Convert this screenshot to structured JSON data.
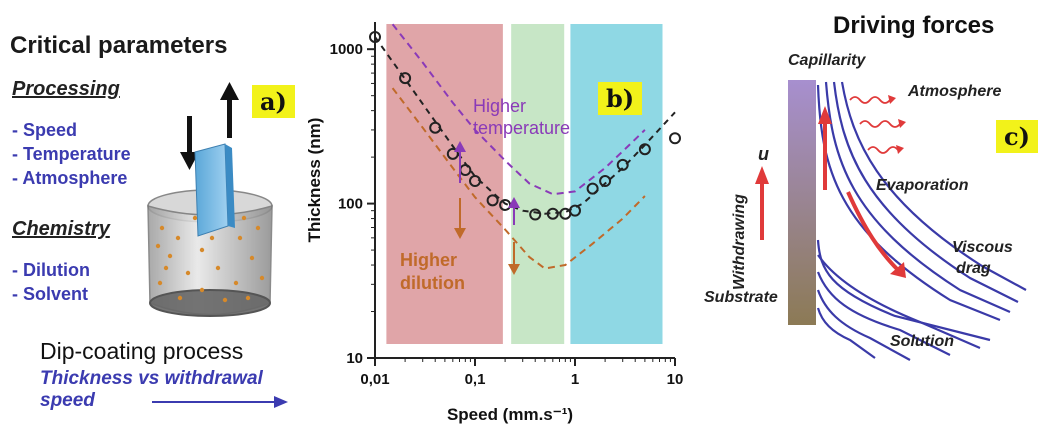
{
  "panel_a": {
    "title": "Critical parameters",
    "processing_heading": "Processing",
    "processing_items": [
      "- Speed",
      "- Temperature",
      "- Atmosphere"
    ],
    "chemistry_heading": "Chemistry",
    "chemistry_items": [
      "- Dilution",
      "- Solvent"
    ],
    "label": "a)",
    "footer_title": "Dip-coating process",
    "footer_sub_line1": "Thickness vs withdrawal",
    "footer_sub_line2": "speed"
  },
  "panel_b": {
    "label": "b)",
    "annotation_temperature_line1": "Higher",
    "annotation_temperature_line2": "temperature",
    "annotation_dilution_line1": "Higher",
    "annotation_dilution_line2": "dilution",
    "colors": {
      "red_band": "#e0a5a8",
      "green_band": "#c7e6c6",
      "blue_band": "#8fd8e4",
      "purple": "#8a3ab8",
      "orange": "#c06a2a"
    }
  },
  "panel_c": {
    "title": "Driving forces",
    "label": "c)",
    "capillarity": "Capillarity",
    "atmosphere": "Atmosphere",
    "withdrawing": "Withdrawing",
    "u": "u",
    "evaporation": "Evaporation",
    "viscous_line1": "Viscous",
    "viscous_line2": "drag",
    "substrate": "Substrate",
    "solution": "Solution"
  },
  "chart_data": {
    "type": "scatter",
    "xlabel": "Speed (mm.s⁻¹)",
    "ylabel": "Thickness (nm)",
    "x_scale": "log",
    "y_scale": "log",
    "xlim": [
      0.01,
      10
    ],
    "ylim": [
      10,
      1500
    ],
    "x_ticks": [
      0.01,
      0.1,
      1,
      10
    ],
    "x_tick_labels": [
      "0,01",
      "0,1",
      "1",
      "10"
    ],
    "y_ticks": [
      10,
      100,
      1000
    ],
    "y_tick_labels": [
      "10",
      "100",
      "1000"
    ],
    "bands": [
      {
        "from": 0.013,
        "to": 0.19,
        "color": "#e0a5a8"
      },
      {
        "from": 0.23,
        "to": 0.78,
        "color": "#c7e6c6"
      },
      {
        "from": 0.9,
        "to": 7.5,
        "color": "#8fd8e4"
      }
    ],
    "points": [
      {
        "x": 0.01,
        "y": 1200
      },
      {
        "x": 0.02,
        "y": 650
      },
      {
        "x": 0.04,
        "y": 310
      },
      {
        "x": 0.06,
        "y": 210
      },
      {
        "x": 0.08,
        "y": 165
      },
      {
        "x": 0.1,
        "y": 140
      },
      {
        "x": 0.15,
        "y": 105
      },
      {
        "x": 0.2,
        "y": 98
      },
      {
        "x": 0.4,
        "y": 85
      },
      {
        "x": 0.6,
        "y": 86
      },
      {
        "x": 0.8,
        "y": 86
      },
      {
        "x": 1.0,
        "y": 90
      },
      {
        "x": 1.5,
        "y": 125
      },
      {
        "x": 2.0,
        "y": 140
      },
      {
        "x": 3.0,
        "y": 178
      },
      {
        "x": 5.0,
        "y": 225
      },
      {
        "x": 10,
        "y": 265
      }
    ],
    "fit_curve_black": [
      [
        0.01,
        1200
      ],
      [
        0.02,
        640
      ],
      [
        0.04,
        340
      ],
      [
        0.07,
        205
      ],
      [
        0.1,
        150
      ],
      [
        0.15,
        118
      ],
      [
        0.2,
        100
      ],
      [
        0.3,
        90
      ],
      [
        0.5,
        86
      ],
      [
        0.8,
        88
      ],
      [
        1.2,
        100
      ],
      [
        2.0,
        135
      ],
      [
        3.0,
        170
      ],
      [
        5.0,
        240
      ],
      [
        10,
        390
      ]
    ],
    "curve_purple": [
      [
        0.015,
        1450
      ],
      [
        0.03,
        820
      ],
      [
        0.06,
        450
      ],
      [
        0.1,
        300
      ],
      [
        0.2,
        190
      ],
      [
        0.35,
        135
      ],
      [
        0.6,
        115
      ],
      [
        1.0,
        120
      ],
      [
        2.0,
        170
      ],
      [
        3.5,
        240
      ],
      [
        5.0,
        300
      ]
    ],
    "curve_orange": [
      [
        0.015,
        560
      ],
      [
        0.03,
        310
      ],
      [
        0.06,
        170
      ],
      [
        0.1,
        110
      ],
      [
        0.2,
        68
      ],
      [
        0.35,
        45
      ],
      [
        0.5,
        38
      ],
      [
        0.8,
        40
      ],
      [
        1.5,
        55
      ],
      [
        3.0,
        80
      ],
      [
        5.0,
        112
      ]
    ]
  }
}
